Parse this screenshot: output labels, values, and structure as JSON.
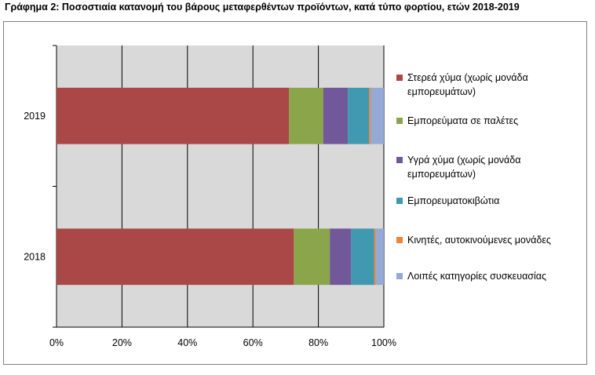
{
  "title": "Γράφημα 2: Ποσοστιαία κατανομή του βάρους μεταφερθέντων προϊόντων, κατά τύπο φορτίου, ετών 2018-2019",
  "chart_data": {
    "type": "bar",
    "orientation": "horizontal",
    "stacked": "percent",
    "categories": [
      "2019",
      "2018"
    ],
    "xlim": [
      0,
      100
    ],
    "x_ticks": [
      "0%",
      "20%",
      "40%",
      "60%",
      "80%",
      "100%"
    ],
    "grid": true,
    "legend_position": "right",
    "series": [
      {
        "name": "Στερεά χύμα (χωρίς μονάδα εμπορευμάτων)",
        "color": "#A94846",
        "values": [
          71,
          72.5
        ]
      },
      {
        "name": "Εμπορεύματα σε παλέτες",
        "color": "#8BA54B",
        "values": [
          10.5,
          11
        ]
      },
      {
        "name": "Υγρά χύμα (χωρίς μονάδα εμπορευμάτων)",
        "color": "#71589A",
        "values": [
          7.5,
          6.5
        ]
      },
      {
        "name": "Εμπορευματοκιβώτια",
        "color": "#4099B0",
        "values": [
          6.5,
          7
        ]
      },
      {
        "name": "Κινητές, αυτοκινούμενες μονάδες",
        "color": "#E9873C",
        "values": [
          0.5,
          0.5
        ]
      },
      {
        "name": "Λοιπές κατηγορίες συσκευασίας",
        "color": "#95A9D6",
        "values": [
          4,
          2.5
        ]
      }
    ]
  }
}
